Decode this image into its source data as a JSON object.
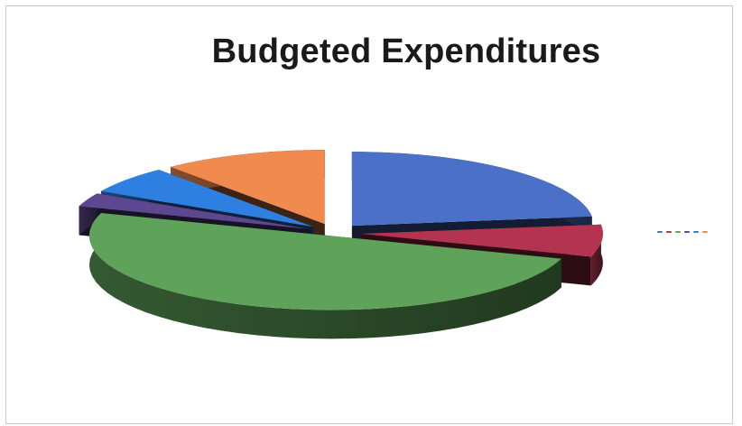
{
  "chart_data": {
    "type": "pie",
    "title": "Budgeted Expenditures",
    "slices": [
      {
        "value": 23.0,
        "color": "#4a70c7"
      },
      {
        "value": 7.0,
        "color": "#b33450"
      },
      {
        "value": 50.0,
        "color": "#5fa35a"
      },
      {
        "value": 3.0,
        "color": "#5c4890"
      },
      {
        "value": 6.0,
        "color": "#2f7fe0"
      },
      {
        "value": 11.0,
        "color": "#f08a4f"
      }
    ],
    "legend_position": "right"
  }
}
